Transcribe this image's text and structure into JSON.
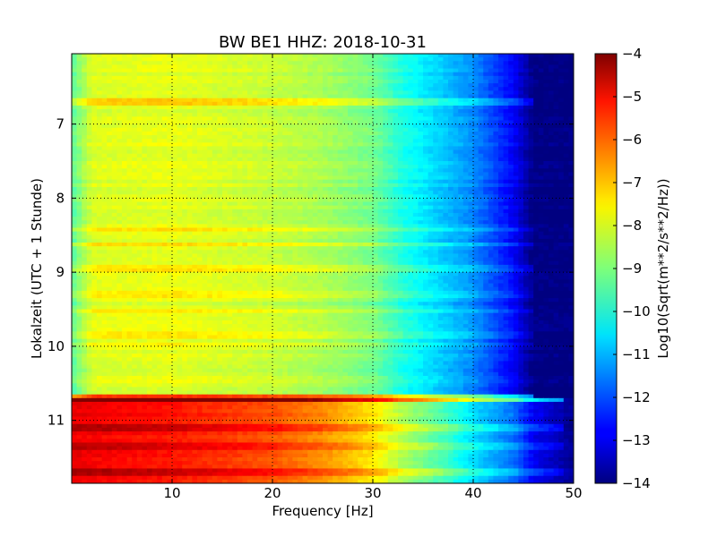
{
  "chart_data": {
    "type": "heatmap",
    "title": "BW BE1 HHZ: 2018-10-31",
    "xlabel": "Frequency [Hz]",
    "ylabel": "Lokalzeit (UTC + 1 Stunde)",
    "xlim": [
      0,
      50
    ],
    "ylim": [
      6.05,
      11.85
    ],
    "y_inverted": true,
    "grid": true,
    "x_ticks": [
      10,
      20,
      30,
      40,
      50
    ],
    "x_tick_labels": [
      "10",
      "20",
      "30",
      "40",
      "50"
    ],
    "y_ticks": [
      7,
      8,
      9,
      10,
      11
    ],
    "y_tick_labels": [
      "7",
      "8",
      "9",
      "10",
      "11"
    ],
    "colormap": "jet",
    "colorbar": {
      "label": "Log10(Sqrt(m**2/s**2/Hz))",
      "range": [
        -14,
        -4
      ],
      "ticks": [
        -4,
        -5,
        -6,
        -7,
        -8,
        -9,
        -10,
        -11,
        -12,
        -13,
        -14
      ],
      "tick_labels": [
        "−4",
        "−5",
        "−6",
        "−7",
        "−8",
        "−9",
        "−10",
        "−11",
        "−12",
        "−13",
        "−14"
      ]
    },
    "regions": [
      {
        "time_start": 6.05,
        "time_end": 10.67,
        "freq_profile": {
          "frequency_hz": [
            0,
            2,
            10,
            20,
            25,
            30,
            33,
            37,
            40,
            44,
            46,
            50
          ],
          "log10_amplitude": [
            -9.4,
            -8.1,
            -8.0,
            -8.3,
            -8.6,
            -9.1,
            -10.0,
            -10.8,
            -11.4,
            -12.8,
            -14.0,
            -14.0
          ]
        }
      },
      {
        "time_start": 10.67,
        "time_end": 11.85,
        "freq_profile": {
          "frequency_hz": [
            0,
            2,
            10,
            20,
            25,
            30,
            33,
            37,
            40,
            44,
            46,
            50
          ],
          "log10_amplitude": [
            -5.0,
            -5.1,
            -5.4,
            -6.0,
            -6.6,
            -7.5,
            -8.5,
            -9.5,
            -10.5,
            -11.6,
            -12.8,
            -13.8
          ]
        }
      }
    ],
    "bright_bands": [
      {
        "time": 6.68,
        "delta": 0.9
      },
      {
        "time": 8.4,
        "delta": 0.5
      },
      {
        "time": 8.6,
        "delta": 0.5
      },
      {
        "time": 8.92,
        "delta": 0.6
      },
      {
        "time": 9.28,
        "delta": 0.6
      },
      {
        "time": 9.5,
        "delta": 0.5
      },
      {
        "time": 9.82,
        "delta": 0.6
      },
      {
        "time": 9.95,
        "delta": 0.4
      },
      {
        "time": 10.68,
        "delta": 2.5
      },
      {
        "time": 11.08,
        "delta": 0.8
      },
      {
        "time": 11.32,
        "delta": 0.5
      },
      {
        "time": 11.68,
        "delta": 0.6
      }
    ]
  }
}
